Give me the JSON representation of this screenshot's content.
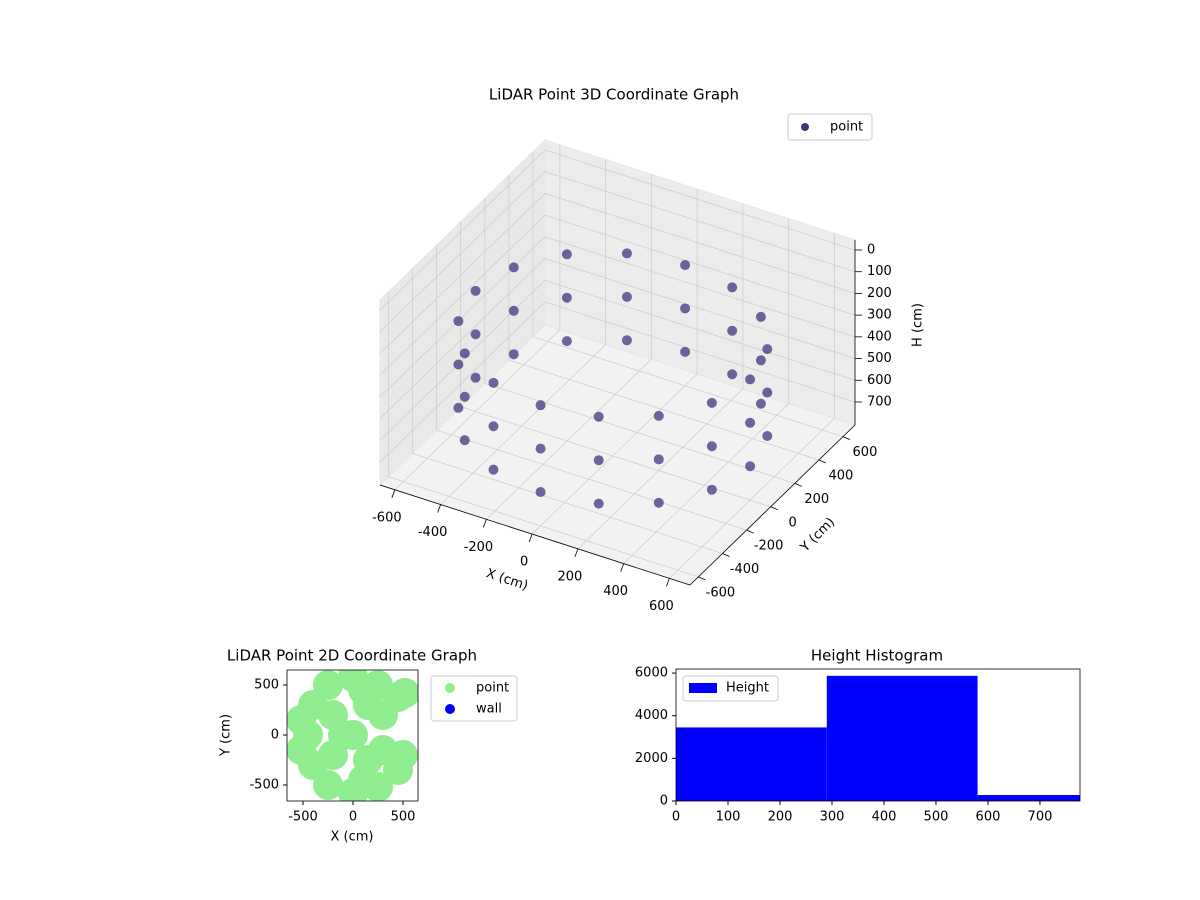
{
  "chart_data": [
    {
      "type": "scatter3d",
      "title": "LiDAR Point 3D Coordinate Graph",
      "xlabel": "X (cm)",
      "ylabel": "Y (cm)",
      "zlabel": "H (cm)",
      "xlim": [
        -665,
        690
      ],
      "ylim": [
        -670,
        700
      ],
      "zlim": [
        806,
        -46
      ],
      "xticks": [
        -600,
        -400,
        -200,
        0,
        200,
        400,
        600
      ],
      "yticks": [
        -600,
        -400,
        -200,
        0,
        200,
        400,
        600
      ],
      "zticks": [
        0,
        100,
        200,
        300,
        400,
        500,
        600,
        700
      ],
      "legend": "upper right",
      "grid": true,
      "series": [
        {
          "name": "point",
          "color": "#46317e",
          "x": [
            600,
            554,
            424,
            230,
            0,
            -230,
            -424,
            -554,
            -600,
            -554,
            -424,
            -230,
            0,
            230,
            424,
            554,
            600,
            554,
            424,
            230,
            0,
            -230,
            -424,
            -554,
            -600,
            -554,
            -424,
            -230,
            0,
            230,
            424,
            554,
            600,
            554,
            424,
            230,
            0,
            -230,
            -424,
            -554,
            -600,
            -554,
            -424,
            -230,
            0,
            230,
            424,
            554
          ],
          "y": [
            0,
            230,
            424,
            554,
            600,
            554,
            424,
            230,
            0,
            -230,
            -424,
            -554,
            -600,
            -554,
            -424,
            -230,
            0,
            230,
            424,
            554,
            600,
            554,
            424,
            230,
            0,
            -230,
            -424,
            -554,
            -600,
            -554,
            -424,
            -230,
            0,
            230,
            424,
            554,
            600,
            554,
            424,
            230,
            0,
            -230,
            -424,
            -554,
            -600,
            -554,
            -424,
            -230
          ],
          "z": [
            250,
            250,
            250,
            250,
            250,
            250,
            250,
            250,
            250,
            250,
            250,
            250,
            250,
            250,
            250,
            250,
            450,
            450,
            450,
            450,
            450,
            450,
            450,
            450,
            450,
            450,
            450,
            450,
            450,
            450,
            450,
            450,
            650,
            650,
            650,
            650,
            650,
            650,
            650,
            650,
            650,
            650,
            650,
            650,
            650,
            650,
            650,
            650
          ]
        }
      ]
    },
    {
      "type": "scatter",
      "title": "LiDAR Point 2D Coordinate Graph",
      "xlabel": "X (cm)",
      "ylabel": "Y (cm)",
      "xlim": [
        -660,
        650
      ],
      "ylim": [
        -660,
        650
      ],
      "xticks": [
        -500,
        0,
        500
      ],
      "yticks": [
        -500,
        0,
        500
      ],
      "legend": "outside right",
      "series": [
        {
          "name": "point",
          "color": "#90ee90",
          "x": [
            -450,
            -400,
            -400,
            -250,
            -250,
            0,
            0,
            250,
            250,
            450,
            450,
            -200,
            -200,
            0,
            150,
            150,
            300,
            300,
            500,
            520,
            -520,
            -520,
            100,
            100,
            -100
          ],
          "y": [
            0,
            -300,
            300,
            -500,
            500,
            -580,
            580,
            -520,
            500,
            -350,
            380,
            -200,
            200,
            0,
            -250,
            300,
            -150,
            200,
            -200,
            420,
            -150,
            150,
            -450,
            450,
            0
          ]
        },
        {
          "name": "wall",
          "color": "#0000ff",
          "x": [],
          "y": []
        }
      ]
    },
    {
      "type": "histogram",
      "title": "Height Histogram",
      "bins": [
        0,
        290,
        580,
        870
      ],
      "values": [
        3450,
        5870,
        280
      ],
      "name": "Height",
      "color": "#0000ff",
      "xlim": [
        0,
        777
      ],
      "ylim": [
        0,
        6190
      ],
      "xticks": [
        0,
        100,
        200,
        300,
        400,
        500,
        600,
        700
      ],
      "yticks": [
        0,
        2000,
        4000,
        6000
      ],
      "legend": "upper left"
    }
  ]
}
